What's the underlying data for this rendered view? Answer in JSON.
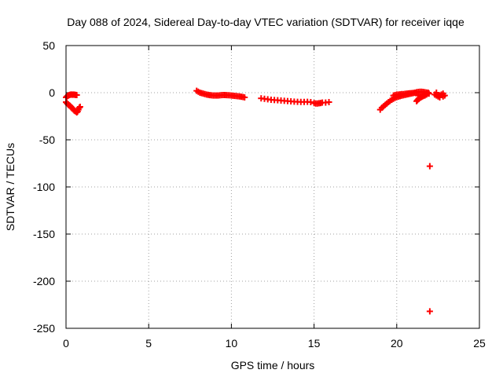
{
  "chart_data": {
    "type": "scatter",
    "title": "Day 088 of 2024, Sidereal Day-to-day VTEC variation (SDTVAR) for receiver iqqe",
    "xlabel": "GPS time / hours",
    "ylabel": "SDTVAR / TECUs",
    "xlim": [
      0,
      25
    ],
    "ylim": [
      -250,
      50
    ],
    "xticks": [
      0,
      5,
      10,
      15,
      20,
      25
    ],
    "yticks": [
      50,
      0,
      -50,
      -100,
      -150,
      -200,
      -250
    ],
    "grid": true,
    "marker": "plus",
    "color": "#ff0000",
    "series": [
      {
        "points": [
          [
            0.0,
            -5
          ],
          [
            0.05,
            -4
          ],
          [
            0.1,
            -3.5
          ],
          [
            0.15,
            -3
          ],
          [
            0.2,
            -2.5
          ],
          [
            0.25,
            -2.2
          ],
          [
            0.3,
            -2
          ],
          [
            0.35,
            -2
          ],
          [
            0.4,
            -2.2
          ],
          [
            0.45,
            -2
          ],
          [
            0.5,
            -2.1
          ],
          [
            0.55,
            -2.3
          ],
          [
            0.6,
            -2.4
          ],
          [
            0.65,
            -2.5
          ],
          [
            0.0,
            -10
          ],
          [
            0.05,
            -11
          ],
          [
            0.1,
            -12
          ],
          [
            0.15,
            -13
          ],
          [
            0.2,
            -13.5
          ],
          [
            0.25,
            -14
          ],
          [
            0.3,
            -15
          ],
          [
            0.35,
            -16
          ],
          [
            0.4,
            -17
          ],
          [
            0.45,
            -18
          ],
          [
            0.5,
            -19
          ],
          [
            0.55,
            -19.5
          ],
          [
            0.6,
            -20
          ],
          [
            0.65,
            -21
          ],
          [
            0.7,
            -20
          ],
          [
            0.75,
            -18
          ],
          [
            0.8,
            -16
          ],
          [
            0.85,
            -15
          ],
          [
            7.9,
            2
          ],
          [
            8.0,
            1
          ],
          [
            8.1,
            0
          ],
          [
            8.2,
            -0.5
          ],
          [
            8.3,
            -1
          ],
          [
            8.4,
            -1.5
          ],
          [
            8.5,
            -2
          ],
          [
            8.6,
            -2.3
          ],
          [
            8.7,
            -2.6
          ],
          [
            8.8,
            -2.8
          ],
          [
            8.9,
            -3
          ],
          [
            9.0,
            -3
          ],
          [
            9.1,
            -3
          ],
          [
            9.2,
            -3
          ],
          [
            9.3,
            -2.8
          ],
          [
            9.4,
            -2.6
          ],
          [
            9.5,
            -2.5
          ],
          [
            9.6,
            -2.5
          ],
          [
            9.7,
            -2.6
          ],
          [
            9.8,
            -2.7
          ],
          [
            9.9,
            -2.8
          ],
          [
            10.0,
            -3
          ],
          [
            10.1,
            -3.2
          ],
          [
            10.2,
            -3.4
          ],
          [
            10.3,
            -3.6
          ],
          [
            10.4,
            -3.8
          ],
          [
            10.5,
            -4
          ],
          [
            10.6,
            -4.3
          ],
          [
            10.7,
            -4.6
          ],
          [
            10.8,
            -5
          ],
          [
            11.8,
            -6
          ],
          [
            12.0,
            -6.5
          ],
          [
            12.2,
            -7
          ],
          [
            12.4,
            -7.5
          ],
          [
            12.6,
            -7.8
          ],
          [
            12.8,
            -8
          ],
          [
            13.0,
            -8.3
          ],
          [
            13.2,
            -8.6
          ],
          [
            13.4,
            -8.9
          ],
          [
            13.6,
            -9.2
          ],
          [
            13.8,
            -9.5
          ],
          [
            14.0,
            -9.7
          ],
          [
            14.2,
            -9.8
          ],
          [
            14.4,
            -9.8
          ],
          [
            14.6,
            -9.7
          ],
          [
            14.8,
            -10
          ],
          [
            15.0,
            -11
          ],
          [
            15.1,
            -11.5
          ],
          [
            15.2,
            -11.5
          ],
          [
            15.3,
            -11.2
          ],
          [
            15.4,
            -11
          ],
          [
            15.5,
            -10.5
          ],
          [
            15.7,
            -10.5
          ],
          [
            15.9,
            -10
          ],
          [
            19.0,
            -18
          ],
          [
            19.1,
            -16
          ],
          [
            19.2,
            -14.5
          ],
          [
            19.3,
            -13
          ],
          [
            19.4,
            -11.5
          ],
          [
            19.5,
            -10
          ],
          [
            19.6,
            -8.7
          ],
          [
            19.7,
            -7.5
          ],
          [
            19.8,
            -6.5
          ],
          [
            19.9,
            -5.5
          ],
          [
            20.0,
            -4.8
          ],
          [
            20.1,
            -4.2
          ],
          [
            20.2,
            -3.7
          ],
          [
            20.3,
            -3.2
          ],
          [
            20.4,
            -2.8
          ],
          [
            20.5,
            -2.4
          ],
          [
            20.6,
            -2
          ],
          [
            20.7,
            -1.6
          ],
          [
            20.8,
            -1.2
          ],
          [
            20.9,
            -0.8
          ],
          [
            21.0,
            -0.4
          ],
          [
            21.1,
            0
          ],
          [
            21.2,
            0.5
          ],
          [
            21.3,
            0.8
          ],
          [
            21.4,
            1
          ],
          [
            21.5,
            1
          ],
          [
            21.6,
            0.8
          ],
          [
            21.7,
            0.5
          ],
          [
            21.8,
            0.2
          ],
          [
            19.8,
            -3
          ],
          [
            19.9,
            -2.5
          ],
          [
            20.0,
            -2
          ],
          [
            20.1,
            -2
          ],
          [
            20.2,
            -1.8
          ],
          [
            20.3,
            -1.5
          ],
          [
            20.4,
            -1.5
          ],
          [
            20.5,
            -1.2
          ],
          [
            20.6,
            -1
          ],
          [
            20.7,
            -0.8
          ],
          [
            20.8,
            -0.6
          ],
          [
            20.9,
            -0.5
          ],
          [
            21.0,
            -0.3
          ],
          [
            21.2,
            -9
          ],
          [
            21.25,
            -8
          ],
          [
            21.3,
            -7
          ],
          [
            21.35,
            -6
          ],
          [
            21.4,
            -5.5
          ],
          [
            21.45,
            -5
          ],
          [
            21.5,
            -4.5
          ],
          [
            21.55,
            -4
          ],
          [
            21.6,
            -3.5
          ],
          [
            21.65,
            -3
          ],
          [
            21.7,
            -2.5
          ],
          [
            21.75,
            -2
          ],
          [
            21.8,
            -1.5
          ],
          [
            21.85,
            -1
          ],
          [
            21.3,
            -3
          ],
          [
            21.4,
            -3
          ],
          [
            21.5,
            -3
          ],
          [
            21.6,
            -3
          ],
          [
            21.7,
            -3
          ],
          [
            21.8,
            -2
          ],
          [
            21.9,
            0
          ],
          [
            21.95,
            -1
          ],
          [
            22.3,
            -2
          ],
          [
            22.4,
            -3
          ],
          [
            22.5,
            -4
          ],
          [
            22.6,
            -3
          ],
          [
            22.7,
            -2
          ],
          [
            22.8,
            -1
          ],
          [
            22.9,
            -3
          ],
          [
            22.4,
            0
          ],
          [
            22.6,
            -5
          ],
          [
            22.8,
            -4
          ],
          [
            22.0,
            -78
          ],
          [
            22.0,
            -232
          ]
        ]
      }
    ]
  }
}
